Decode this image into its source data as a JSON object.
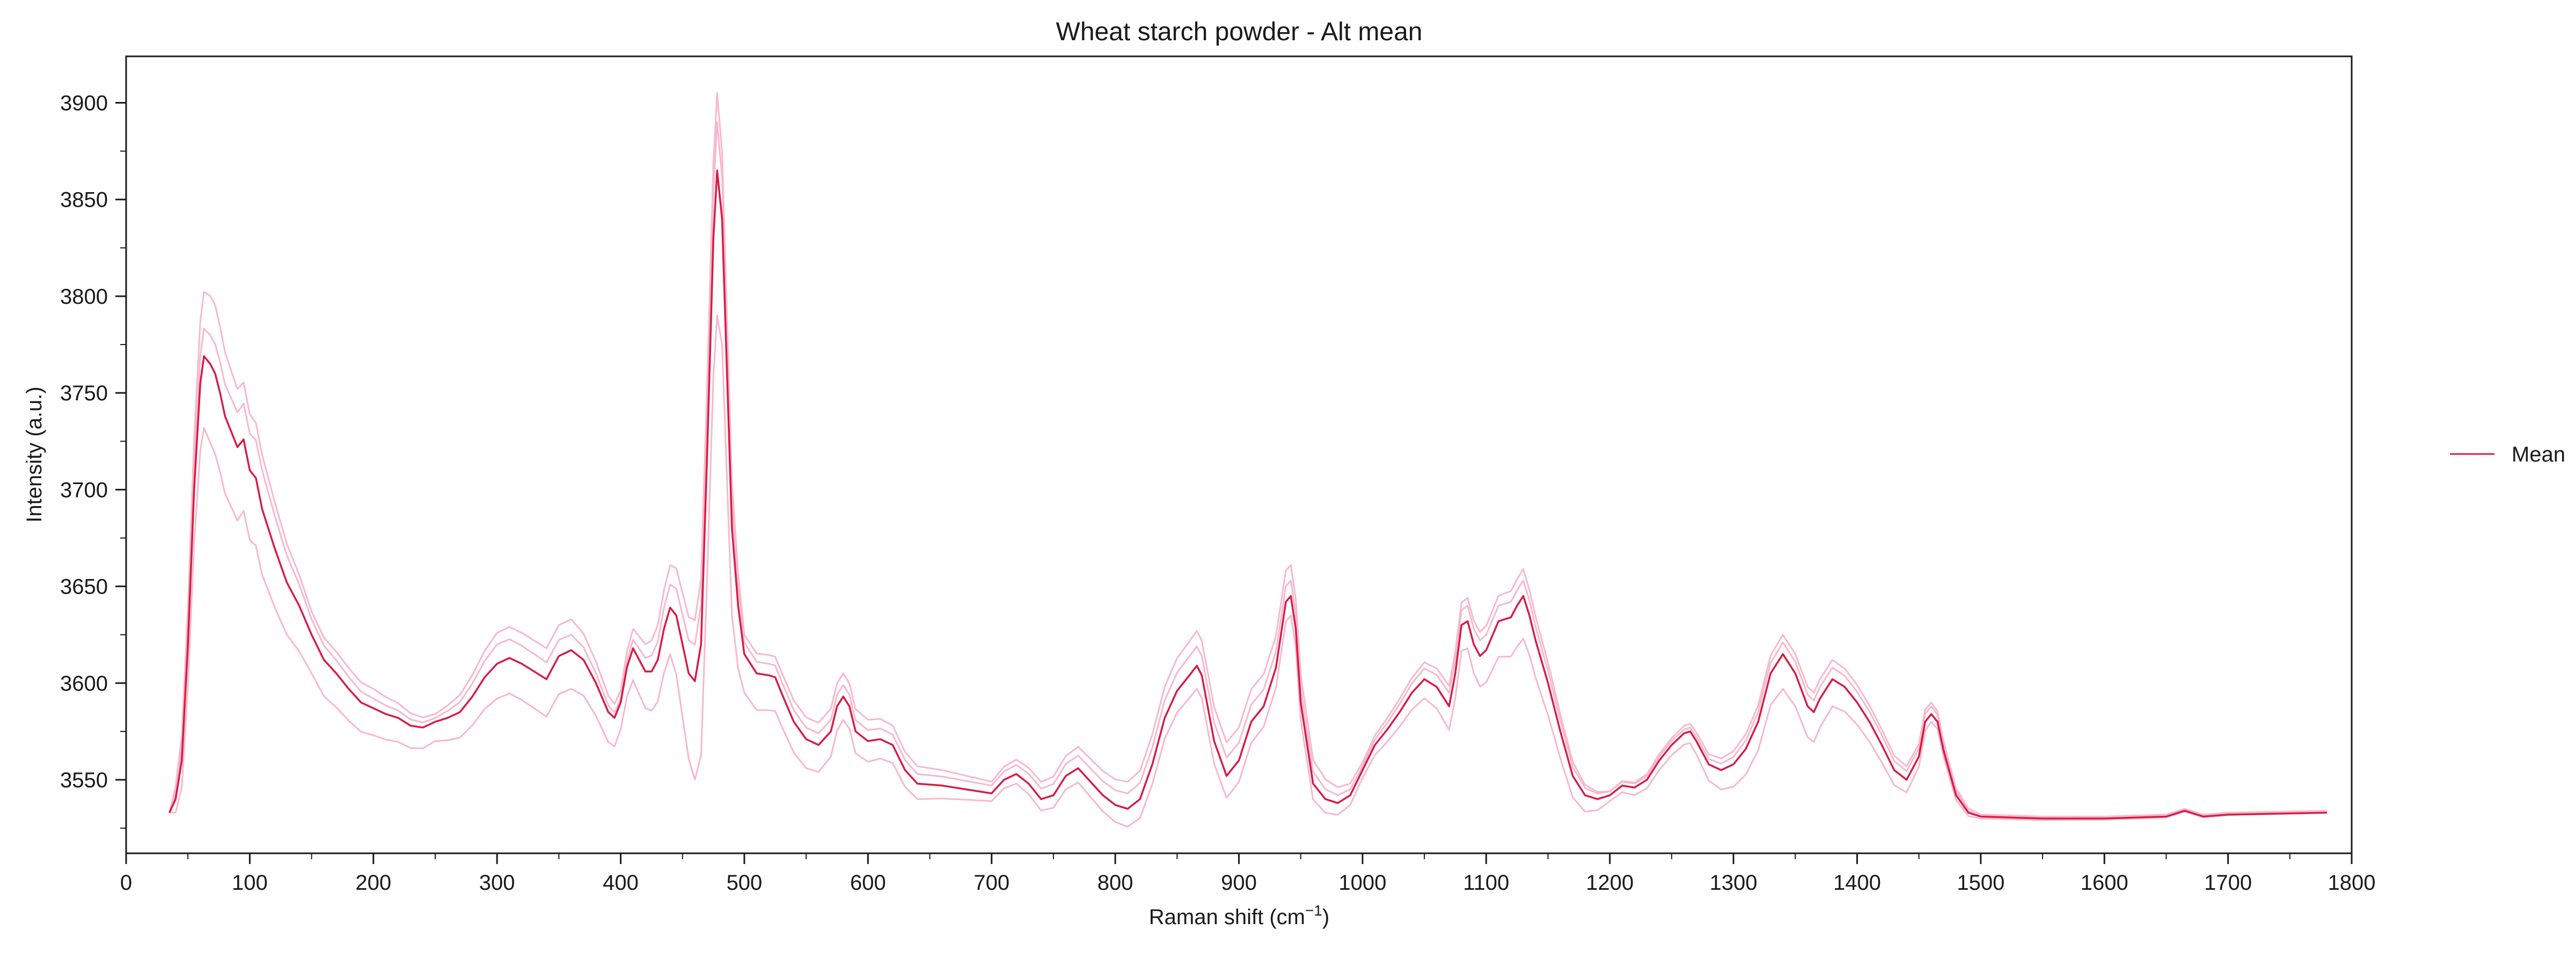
{
  "chart_data": {
    "type": "line",
    "title": "Wheat starch powder - Alt mean",
    "xlabel": "Raman shift (cm",
    "xlabel_sup": "−1",
    "xlabel_close": ")",
    "ylabel": "Intensity (a.u.)",
    "xlim": [
      0,
      1800
    ],
    "ylim": [
      3512,
      3924
    ],
    "x_ticks": [
      0,
      100,
      200,
      300,
      400,
      500,
      600,
      700,
      800,
      900,
      1000,
      1100,
      1200,
      1300,
      1400,
      1500,
      1600,
      1700,
      1800
    ],
    "y_ticks": [
      3550,
      3600,
      3650,
      3700,
      3750,
      3800,
      3850,
      3900
    ],
    "grid": false,
    "legend": {
      "placement": "right, outside plot",
      "entries": [
        "Mean"
      ]
    },
    "colors": {
      "mean": "#d81b45",
      "replicates": "#f7b8cc"
    },
    "mean_series": {
      "name": "Mean",
      "points": [
        [
          35,
          3533
        ],
        [
          40,
          3540
        ],
        [
          45,
          3560
        ],
        [
          50,
          3620
        ],
        [
          55,
          3700
        ],
        [
          60,
          3755
        ],
        [
          63,
          3769
        ],
        [
          68,
          3765
        ],
        [
          72,
          3760
        ],
        [
          76,
          3750
        ],
        [
          80,
          3738
        ],
        [
          85,
          3730
        ],
        [
          90,
          3722
        ],
        [
          95,
          3726
        ],
        [
          100,
          3710
        ],
        [
          105,
          3706
        ],
        [
          110,
          3690
        ],
        [
          120,
          3670
        ],
        [
          130,
          3652
        ],
        [
          140,
          3640
        ],
        [
          150,
          3625
        ],
        [
          160,
          3612
        ],
        [
          170,
          3605
        ],
        [
          180,
          3597
        ],
        [
          190,
          3590
        ],
        [
          200,
          3587
        ],
        [
          210,
          3584
        ],
        [
          220,
          3582
        ],
        [
          230,
          3578
        ],
        [
          240,
          3577
        ],
        [
          250,
          3580
        ],
        [
          260,
          3582
        ],
        [
          270,
          3585
        ],
        [
          280,
          3593
        ],
        [
          290,
          3603
        ],
        [
          300,
          3610
        ],
        [
          310,
          3613
        ],
        [
          320,
          3610
        ],
        [
          330,
          3606
        ],
        [
          340,
          3602
        ],
        [
          350,
          3614
        ],
        [
          360,
          3617
        ],
        [
          370,
          3612
        ],
        [
          380,
          3600
        ],
        [
          390,
          3585
        ],
        [
          395,
          3582
        ],
        [
          400,
          3590
        ],
        [
          405,
          3608
        ],
        [
          410,
          3618
        ],
        [
          415,
          3612
        ],
        [
          420,
          3606
        ],
        [
          425,
          3606
        ],
        [
          430,
          3612
        ],
        [
          435,
          3628
        ],
        [
          440,
          3639
        ],
        [
          445,
          3635
        ],
        [
          450,
          3620
        ],
        [
          455,
          3605
        ],
        [
          460,
          3601
        ],
        [
          465,
          3620
        ],
        [
          470,
          3720
        ],
        [
          475,
          3830
        ],
        [
          478,
          3865
        ],
        [
          482,
          3840
        ],
        [
          486,
          3760
        ],
        [
          490,
          3680
        ],
        [
          495,
          3640
        ],
        [
          500,
          3615
        ],
        [
          510,
          3605
        ],
        [
          520,
          3604
        ],
        [
          525,
          3603
        ],
        [
          530,
          3595
        ],
        [
          540,
          3580
        ],
        [
          550,
          3571
        ],
        [
          560,
          3568
        ],
        [
          570,
          3575
        ],
        [
          575,
          3588
        ],
        [
          580,
          3593
        ],
        [
          585,
          3588
        ],
        [
          590,
          3575
        ],
        [
          600,
          3570
        ],
        [
          610,
          3571
        ],
        [
          620,
          3568
        ],
        [
          630,
          3555
        ],
        [
          640,
          3548
        ],
        [
          660,
          3547
        ],
        [
          680,
          3545
        ],
        [
          700,
          3543
        ],
        [
          710,
          3550
        ],
        [
          720,
          3553
        ],
        [
          730,
          3548
        ],
        [
          740,
          3540
        ],
        [
          750,
          3542
        ],
        [
          760,
          3552
        ],
        [
          770,
          3556
        ],
        [
          780,
          3549
        ],
        [
          790,
          3542
        ],
        [
          800,
          3537
        ],
        [
          810,
          3535
        ],
        [
          820,
          3540
        ],
        [
          830,
          3558
        ],
        [
          840,
          3582
        ],
        [
          850,
          3596
        ],
        [
          860,
          3604
        ],
        [
          866,
          3609
        ],
        [
          870,
          3604
        ],
        [
          880,
          3570
        ],
        [
          890,
          3552
        ],
        [
          900,
          3560
        ],
        [
          910,
          3580
        ],
        [
          920,
          3588
        ],
        [
          930,
          3608
        ],
        [
          938,
          3642
        ],
        [
          942,
          3645
        ],
        [
          946,
          3628
        ],
        [
          950,
          3590
        ],
        [
          960,
          3548
        ],
        [
          970,
          3540
        ],
        [
          980,
          3538
        ],
        [
          990,
          3542
        ],
        [
          1000,
          3555
        ],
        [
          1010,
          3568
        ],
        [
          1020,
          3576
        ],
        [
          1030,
          3585
        ],
        [
          1040,
          3595
        ],
        [
          1050,
          3602
        ],
        [
          1060,
          3598
        ],
        [
          1070,
          3588
        ],
        [
          1075,
          3605
        ],
        [
          1080,
          3630
        ],
        [
          1085,
          3632
        ],
        [
          1090,
          3620
        ],
        [
          1095,
          3614
        ],
        [
          1100,
          3617
        ],
        [
          1110,
          3632
        ],
        [
          1120,
          3634
        ],
        [
          1125,
          3640
        ],
        [
          1130,
          3645
        ],
        [
          1135,
          3635
        ],
        [
          1140,
          3622
        ],
        [
          1150,
          3600
        ],
        [
          1160,
          3575
        ],
        [
          1170,
          3552
        ],
        [
          1180,
          3542
        ],
        [
          1190,
          3540
        ],
        [
          1200,
          3542
        ],
        [
          1210,
          3547
        ],
        [
          1220,
          3546
        ],
        [
          1230,
          3550
        ],
        [
          1240,
          3560
        ],
        [
          1250,
          3568
        ],
        [
          1260,
          3574
        ],
        [
          1265,
          3575
        ],
        [
          1270,
          3570
        ],
        [
          1280,
          3558
        ],
        [
          1290,
          3555
        ],
        [
          1300,
          3558
        ],
        [
          1310,
          3566
        ],
        [
          1320,
          3580
        ],
        [
          1330,
          3605
        ],
        [
          1340,
          3615
        ],
        [
          1350,
          3605
        ],
        [
          1360,
          3588
        ],
        [
          1365,
          3585
        ],
        [
          1370,
          3592
        ],
        [
          1380,
          3602
        ],
        [
          1390,
          3598
        ],
        [
          1400,
          3590
        ],
        [
          1410,
          3580
        ],
        [
          1420,
          3568
        ],
        [
          1430,
          3555
        ],
        [
          1440,
          3550
        ],
        [
          1450,
          3562
        ],
        [
          1455,
          3580
        ],
        [
          1460,
          3584
        ],
        [
          1465,
          3580
        ],
        [
          1470,
          3565
        ],
        [
          1480,
          3542
        ],
        [
          1490,
          3533
        ],
        [
          1500,
          3531
        ],
        [
          1550,
          3530
        ],
        [
          1600,
          3530
        ],
        [
          1650,
          3531
        ],
        [
          1665,
          3534
        ],
        [
          1680,
          3531
        ],
        [
          1700,
          3532
        ],
        [
          1780,
          3533
        ]
      ]
    },
    "replicate_series": [
      {
        "offsets": [
          [
            35,
            0
          ],
          [
            60,
            32
          ],
          [
            70,
            36
          ],
          [
            90,
            30
          ],
          [
            110,
            28
          ],
          [
            150,
            12
          ],
          [
            200,
            10
          ],
          [
            250,
            4
          ],
          [
            300,
            16
          ],
          [
            360,
            16
          ],
          [
            400,
            6
          ],
          [
            440,
            22
          ],
          [
            478,
            40
          ],
          [
            500,
            10
          ],
          [
            580,
            12
          ],
          [
            700,
            6
          ],
          [
            866,
            18
          ],
          [
            942,
            16
          ],
          [
            1000,
            4
          ],
          [
            1085,
            12
          ],
          [
            1130,
            14
          ],
          [
            1200,
            2
          ],
          [
            1265,
            4
          ],
          [
            1340,
            10
          ],
          [
            1380,
            10
          ],
          [
            1460,
            6
          ],
          [
            1500,
            1
          ],
          [
            1780,
            1
          ]
        ]
      },
      {
        "offsets": [
          [
            35,
            0
          ],
          [
            60,
            14
          ],
          [
            70,
            15
          ],
          [
            90,
            18
          ],
          [
            110,
            20
          ],
          [
            150,
            8
          ],
          [
            200,
            5
          ],
          [
            250,
            2
          ],
          [
            300,
            10
          ],
          [
            360,
            8
          ],
          [
            400,
            2
          ],
          [
            440,
            12
          ],
          [
            478,
            25
          ],
          [
            500,
            6
          ],
          [
            580,
            6
          ],
          [
            700,
            4
          ],
          [
            866,
            10
          ],
          [
            942,
            8
          ],
          [
            1000,
            2
          ],
          [
            1085,
            8
          ],
          [
            1130,
            8
          ],
          [
            1200,
            2
          ],
          [
            1265,
            2
          ],
          [
            1340,
            6
          ],
          [
            1380,
            6
          ],
          [
            1460,
            4
          ],
          [
            1500,
            0
          ],
          [
            1780,
            0
          ]
        ]
      },
      {
        "offsets": [
          [
            35,
            0
          ],
          [
            60,
            -35
          ],
          [
            70,
            -42
          ],
          [
            90,
            -38
          ],
          [
            110,
            -34
          ],
          [
            150,
            -20
          ],
          [
            200,
            -14
          ],
          [
            250,
            -10
          ],
          [
            300,
            -18
          ],
          [
            360,
            -20
          ],
          [
            400,
            -14
          ],
          [
            440,
            -24
          ],
          [
            478,
            -75
          ],
          [
            500,
            -20
          ],
          [
            580,
            -12
          ],
          [
            700,
            -4
          ],
          [
            866,
            -12
          ],
          [
            942,
            -10
          ],
          [
            1000,
            -4
          ],
          [
            1085,
            -14
          ],
          [
            1130,
            -22
          ],
          [
            1200,
            -3
          ],
          [
            1265,
            -6
          ],
          [
            1340,
            -18
          ],
          [
            1380,
            -14
          ],
          [
            1460,
            -4
          ],
          [
            1500,
            -1
          ],
          [
            1780,
            0
          ]
        ]
      }
    ]
  }
}
